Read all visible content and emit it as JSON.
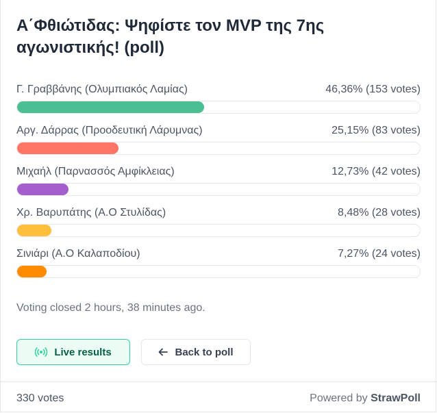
{
  "poll": {
    "title": "Α΄Φθιώτιδας: Ψηφίστε τον MVP της 7ης αγωνιστικής! (poll)",
    "options": [
      {
        "label": "Γ. Γραββάνης (Ολυμπιακός Λαμίας)",
        "result": "46,36% (153 votes)",
        "percent": 46.36,
        "color": "#4bbf94"
      },
      {
        "label": "Αργ. Δάρρας (Προοδευτική Λάρυμνας)",
        "result": "25,15% (83 votes)",
        "percent": 25.15,
        "color": "#ff7566"
      },
      {
        "label": "Μιχαήλ (Παρνασσός Αμφίκλειας)",
        "result": "12,73% (42 votes)",
        "percent": 12.73,
        "color": "#a45fcc"
      },
      {
        "label": "Χρ. Βαρυπάτης (Α.Ο Στυλίδας)",
        "result": "8,48% (28 votes)",
        "percent": 8.48,
        "color": "#ffbf3c"
      },
      {
        "label": "Σινιάρι (Α.Ο Καλαποδίου)",
        "result": "7,27% (24 votes)",
        "percent": 7.27,
        "color": "#ff8c00"
      }
    ],
    "status": "Voting closed 2 hours, 38 minutes ago."
  },
  "buttons": {
    "live_results": "Live results",
    "back_to_poll": "Back to poll"
  },
  "footer": {
    "total_votes": "330 votes",
    "powered_by": "Powered by",
    "brand": "StrawPoll"
  },
  "icons": {
    "live": "broadcast-icon",
    "back": "arrow-left-icon"
  }
}
